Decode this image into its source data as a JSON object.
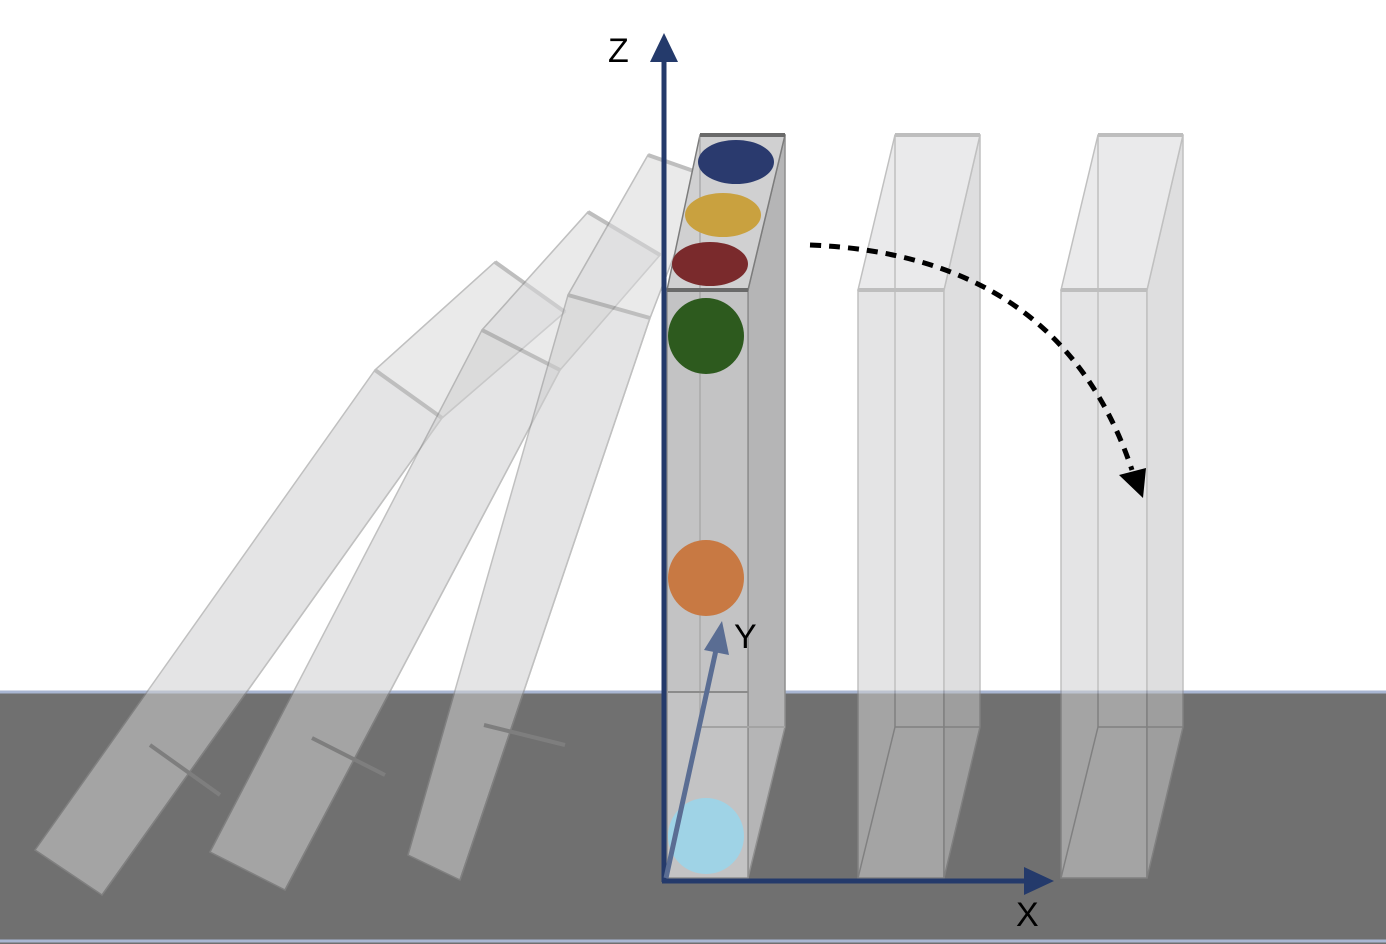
{
  "axes": {
    "x_label": "X",
    "y_label": "Y",
    "z_label": "Z",
    "color": "#243a6b",
    "y_arrow_color": "#5a6d93"
  },
  "colors": {
    "ground": "#707070",
    "ground_edge": "#a9b6d2",
    "block_fill": "#d3d3d4",
    "block_stroke": "#9a9a9a"
  },
  "dots": [
    {
      "name": "navy-dot",
      "color": "#2a3a6e"
    },
    {
      "name": "gold-dot",
      "color": "#c9a13f"
    },
    {
      "name": "maroon-dot",
      "color": "#7a2a2c"
    },
    {
      "name": "green-dot",
      "color": "#2d5a1e"
    },
    {
      "name": "orange-dot",
      "color": "#c87943"
    },
    {
      "name": "light-blue-dot",
      "color": "#9fd3e6"
    }
  ],
  "rotation_arrow": {
    "style": "dashed",
    "color": "#000000"
  }
}
